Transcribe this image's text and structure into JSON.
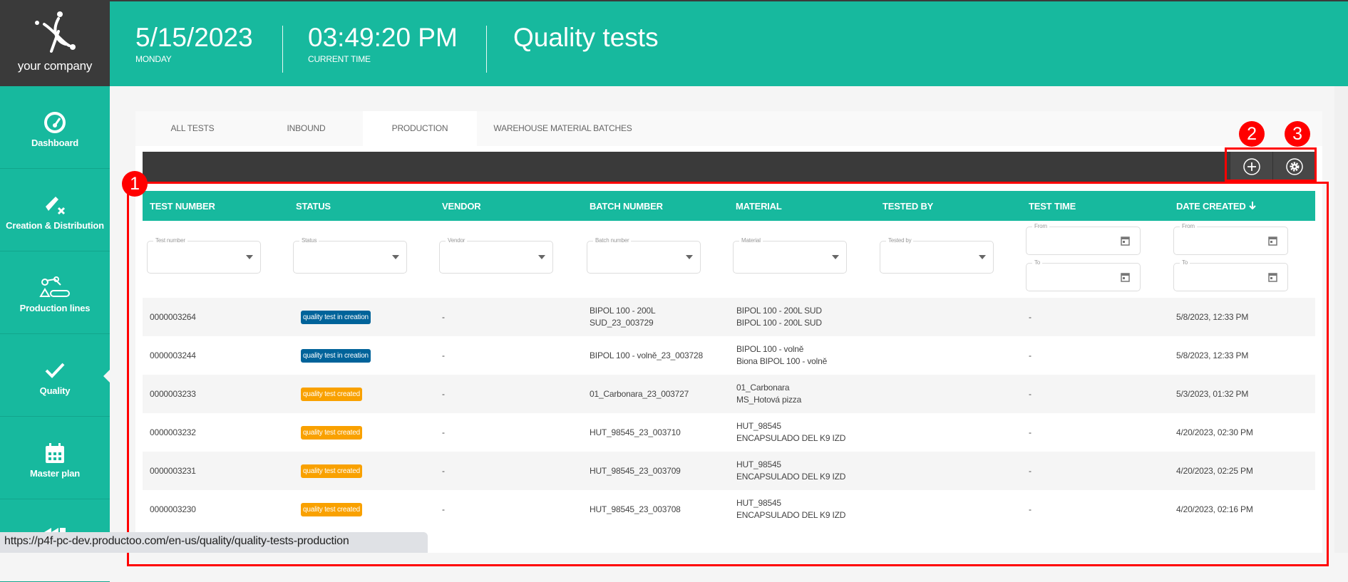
{
  "brand": {
    "name": "your company"
  },
  "header": {
    "date": "5/15/2023",
    "weekday": "MONDAY",
    "time": "03:49:20 PM",
    "time_label": "CURRENT TIME",
    "page_title": "Quality tests"
  },
  "sidebar": {
    "items": [
      {
        "label": "Dashboard",
        "icon": "gauge-icon"
      },
      {
        "label": "Creation & Distribution",
        "icon": "ticket-x-icon"
      },
      {
        "label": "Production lines",
        "icon": "robot-conveyor-icon"
      },
      {
        "label": "Quality",
        "icon": "check-icon",
        "active": true
      },
      {
        "label": "Master plan",
        "icon": "calendar-icon"
      },
      {
        "label": "",
        "icon": "factory-icon"
      }
    ]
  },
  "tabs": [
    {
      "label": "ALL TESTS"
    },
    {
      "label": "INBOUND"
    },
    {
      "label": "PRODUCTION",
      "active": true
    },
    {
      "label": "WAREHOUSE MATERIAL BATCHES"
    }
  ],
  "toolbar": {
    "add_icon": "plus-circle-icon",
    "settings_icon": "gear-icon"
  },
  "table": {
    "columns": [
      "TEST NUMBER",
      "STATUS",
      "VENDOR",
      "BATCH NUMBER",
      "MATERIAL",
      "TESTED BY",
      "TEST TIME",
      "DATE CREATED"
    ],
    "sort_icon": "arrow-down-icon",
    "filters": [
      "Test number",
      "Status",
      "Vendor",
      "Batch number",
      "Material",
      "Tested by"
    ],
    "date_filters": {
      "from": "From",
      "to": "To"
    },
    "status_colors": {
      "quality test in creation": "#00639a",
      "quality test created": "#f9a100"
    },
    "rows": [
      {
        "test_number": "0000003264",
        "status": "quality test in creation",
        "vendor": "-",
        "batch": [
          "BIPOL 100 - 200L",
          "SUD_23_003729"
        ],
        "material": [
          "BIPOL 100 - 200L SUD",
          "BIPOL 100 - 200L SUD"
        ],
        "tested_by": "",
        "test_time": "-",
        "date_created": "5/8/2023, 12:33 PM"
      },
      {
        "test_number": "0000003244",
        "status": "quality test in creation",
        "vendor": "-",
        "batch": [
          "BIPOL 100 - volně_23_003728"
        ],
        "material": [
          "BIPOL 100 - volně",
          "Biona BIPOL 100 - volně"
        ],
        "tested_by": "",
        "test_time": "-",
        "date_created": "5/8/2023, 12:33 PM"
      },
      {
        "test_number": "0000003233",
        "status": "quality test created",
        "vendor": "-",
        "batch": [
          "01_Carbonara_23_003727"
        ],
        "material": [
          "01_Carbonara",
          "MS_Hotová pizza"
        ],
        "tested_by": "",
        "test_time": "-",
        "date_created": "5/3/2023, 01:32 PM"
      },
      {
        "test_number": "0000003232",
        "status": "quality test created",
        "vendor": "-",
        "batch": [
          "HUT_98545_23_003710"
        ],
        "material": [
          "HUT_98545",
          "ENCAPSULADO DEL K9 IZD"
        ],
        "tested_by": "",
        "test_time": "-",
        "date_created": "4/20/2023, 02:30 PM"
      },
      {
        "test_number": "0000003231",
        "status": "quality test created",
        "vendor": "-",
        "batch": [
          "HUT_98545_23_003709"
        ],
        "material": [
          "HUT_98545",
          "ENCAPSULADO DEL K9 IZD"
        ],
        "tested_by": "",
        "test_time": "-",
        "date_created": "4/20/2023, 02:25 PM"
      },
      {
        "test_number": "0000003230",
        "status": "quality test created",
        "vendor": "-",
        "batch": [
          "HUT_98545_23_003708"
        ],
        "material": [
          "HUT_98545",
          "ENCAPSULADO DEL K9 IZD"
        ],
        "tested_by": "",
        "test_time": "-",
        "date_created": "4/20/2023, 02:16 PM"
      }
    ]
  },
  "annotations": [
    "1",
    "2",
    "3"
  ],
  "status_bar": {
    "url": "https://p4f-pc-dev.productoo.com/en-us/quality/quality-tests-production"
  },
  "colors": {
    "accent": "#17b99e",
    "dark": "#3a3a3a",
    "annotation": "#ff0000"
  }
}
